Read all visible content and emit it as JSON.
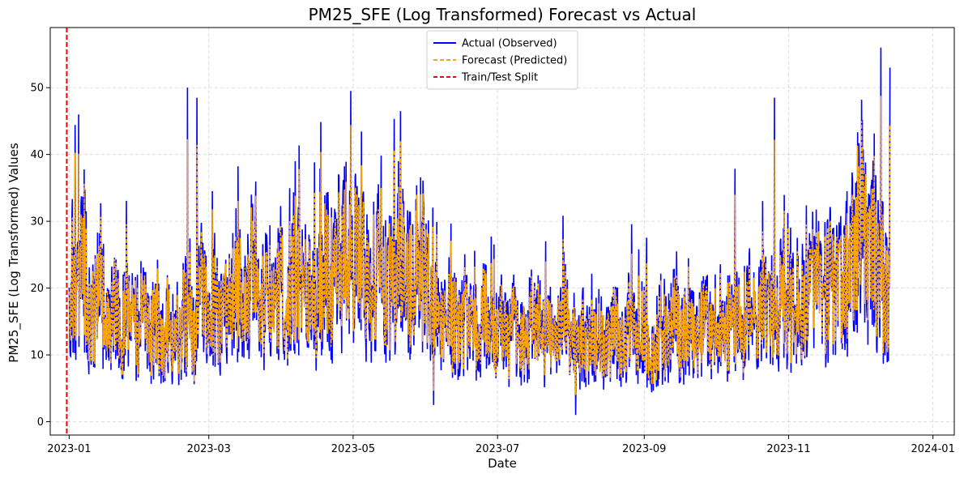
{
  "chart_data": {
    "type": "line",
    "title": "PM25_SFE (Log Transformed) Forecast vs Actual",
    "xlabel": "Date",
    "ylabel": "PM25_SFE (Log Transformed) Values",
    "x_domain": [
      "2022-12-24",
      "2024-01-10"
    ],
    "ylim": [
      -2,
      59
    ],
    "x_ticks": [
      "2023-01",
      "2023-03",
      "2023-05",
      "2023-07",
      "2023-09",
      "2023-11",
      "2024-01"
    ],
    "y_ticks": [
      0,
      10,
      20,
      30,
      40,
      50
    ],
    "grid": true,
    "legend_placement": "top-center",
    "split_date": "2022-12-31",
    "series": [
      {
        "name": "Actual (Observed)",
        "color": "#0000ff",
        "style": "solid",
        "approx_daily_mean": {
          "start": "2023-01-01",
          "values": [
            21,
            23,
            20,
            18,
            19,
            22,
            24,
            20,
            16,
            14,
            15,
            17,
            19,
            21,
            18,
            15,
            13,
            14,
            16,
            18,
            17,
            15,
            14,
            16,
            19,
            17,
            15,
            13,
            14,
            12,
            13,
            15,
            16,
            14,
            12,
            13,
            15,
            14,
            12,
            11,
            13,
            15,
            14,
            13,
            12,
            11,
            12,
            14,
            16,
            15,
            14,
            13,
            12,
            14,
            17,
            19,
            20,
            18,
            16,
            15,
            17,
            18,
            16,
            14,
            15,
            18,
            20,
            21,
            19,
            17,
            18,
            20,
            19,
            17,
            16,
            18,
            20,
            22,
            21,
            19,
            18,
            17,
            16,
            18,
            19,
            17,
            16,
            18,
            21,
            22,
            20,
            19,
            18,
            17,
            19,
            21,
            22,
            20,
            19,
            18,
            17,
            19,
            20,
            18,
            17,
            19,
            21,
            22,
            23,
            21,
            20,
            19,
            22,
            24,
            25,
            23,
            22,
            21,
            20,
            22,
            24,
            25,
            26,
            24,
            22,
            21,
            20,
            19,
            21,
            23,
            24,
            22,
            21,
            20,
            19,
            21,
            22,
            20,
            19,
            21,
            23,
            24,
            22,
            21,
            20,
            22,
            24,
            26,
            25,
            23,
            21,
            20,
            19,
            18,
            17,
            16,
            15,
            14,
            15,
            16,
            17,
            16,
            15,
            14,
            13,
            14,
            15,
            16,
            17,
            16,
            15,
            14,
            13,
            14,
            15,
            16,
            15,
            14,
            13,
            12,
            13,
            14,
            15,
            14,
            13,
            12,
            13,
            14,
            15,
            14,
            13,
            12,
            12,
            13,
            14,
            15,
            14,
            13,
            12,
            11,
            12,
            13,
            14,
            13,
            12,
            11,
            12,
            13,
            14,
            15,
            14,
            13,
            12,
            11,
            10,
            11,
            12,
            13,
            12,
            11,
            10,
            11,
            12,
            13,
            12,
            11,
            10,
            11,
            12,
            13,
            14,
            13,
            12,
            11,
            12,
            13,
            14,
            13,
            12,
            11,
            12,
            13,
            14,
            13,
            12,
            11,
            10,
            11,
            12,
            13,
            12,
            11,
            12,
            13,
            14,
            15,
            14,
            13,
            12,
            13,
            14,
            15,
            14,
            13,
            12,
            13,
            14,
            15,
            16,
            15,
            14,
            13,
            14,
            15,
            16,
            15,
            14,
            13,
            14,
            15,
            16,
            17,
            16,
            15,
            14,
            15,
            16,
            17,
            16,
            15,
            14,
            15,
            16,
            17,
            18,
            17,
            16,
            15,
            16,
            17,
            18,
            19,
            18,
            17,
            16,
            17,
            18,
            19,
            18,
            17,
            16,
            17,
            18,
            19,
            20,
            21,
            20,
            19,
            18,
            19,
            20,
            21,
            22,
            21,
            20,
            19,
            20,
            21,
            22,
            23,
            24,
            25,
            27,
            29,
            31,
            30,
            28,
            27,
            26,
            25,
            24,
            23,
            22,
            21,
            20,
            19,
            18
          ]
        }
      },
      {
        "name": "Forecast (Predicted)",
        "color": "#ffa500",
        "style": "dashed"
      },
      {
        "name": "Train/Test Split",
        "color": "#ff0000",
        "style": "dashed"
      }
    ],
    "notable_peaks": [
      {
        "date": "2023-01-05",
        "value": 46
      },
      {
        "date": "2023-02-20",
        "value": 50
      },
      {
        "date": "2023-02-24",
        "value": 48.5
      },
      {
        "date": "2023-04-30",
        "value": 49.5
      },
      {
        "date": "2023-05-21",
        "value": 46.5
      },
      {
        "date": "2023-10-26",
        "value": 48.5
      },
      {
        "date": "2023-12-10",
        "value": 56
      },
      {
        "date": "2023-12-17",
        "value": 53
      },
      {
        "date": "2023-08-03",
        "value": 1
      },
      {
        "date": "2023-06-04",
        "value": 2.5
      }
    ]
  }
}
